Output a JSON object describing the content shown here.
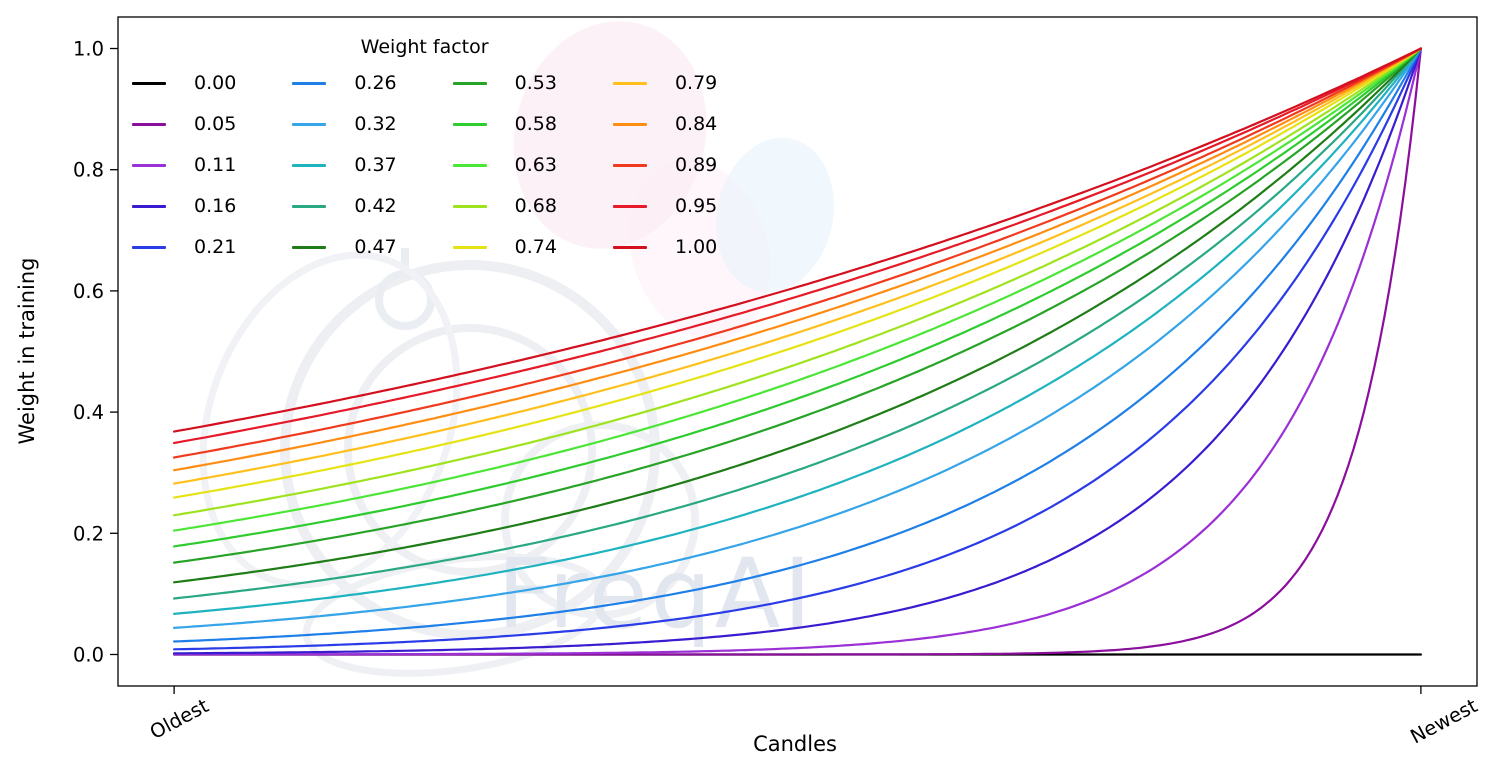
{
  "watermark": {
    "text": "FreqAI"
  },
  "chart_data": {
    "type": "line",
    "title": "",
    "xlabel": "Candles",
    "ylabel": "Weight in training",
    "x_ticks": [
      {
        "label": "Oldest",
        "value": 0
      },
      {
        "label": "Newest",
        "value": 1
      }
    ],
    "y_ticks": [
      {
        "label": "0.0",
        "value": 0.0
      },
      {
        "label": "0.2",
        "value": 0.2
      },
      {
        "label": "0.4",
        "value": 0.4
      },
      {
        "label": "0.6",
        "value": 0.6
      },
      {
        "label": "0.8",
        "value": 0.8
      },
      {
        "label": "1.0",
        "value": 1.0
      }
    ],
    "ylim": [
      0,
      1
    ],
    "x_range": [
      0,
      1
    ],
    "grid": false,
    "legend_title": "Weight factor",
    "legend_position": "upper-left",
    "legend_columns": 4,
    "curve_formula": "weight(x) = exp(-(1 - x) / weight_factor) for x in [0,1]; weight_factor 0.00 is flat at 0; all curves reach 1.0 at Newest",
    "series": [
      {
        "label": "0.00",
        "weight_factor": 0.0,
        "color": "#000000"
      },
      {
        "label": "0.05",
        "weight_factor": 0.05,
        "color": "#8b0f9c"
      },
      {
        "label": "0.11",
        "weight_factor": 0.11,
        "color": "#9a30d5"
      },
      {
        "label": "0.16",
        "weight_factor": 0.16,
        "color": "#3a1cd0"
      },
      {
        "label": "0.21",
        "weight_factor": 0.21,
        "color": "#2a3be8"
      },
      {
        "label": "0.26",
        "weight_factor": 0.26,
        "color": "#1f7fe8"
      },
      {
        "label": "0.32",
        "weight_factor": 0.32,
        "color": "#35a4e8"
      },
      {
        "label": "0.37",
        "weight_factor": 0.37,
        "color": "#1fb3c0"
      },
      {
        "label": "0.42",
        "weight_factor": 0.42,
        "color": "#2aa883"
      },
      {
        "label": "0.47",
        "weight_factor": 0.47,
        "color": "#1e7d16"
      },
      {
        "label": "0.53",
        "weight_factor": 0.53,
        "color": "#27a427"
      },
      {
        "label": "0.58",
        "weight_factor": 0.58,
        "color": "#2ecc2e"
      },
      {
        "label": "0.63",
        "weight_factor": 0.63,
        "color": "#4ce636"
      },
      {
        "label": "0.68",
        "weight_factor": 0.68,
        "color": "#9fe31f"
      },
      {
        "label": "0.74",
        "weight_factor": 0.74,
        "color": "#e6e314"
      },
      {
        "label": "0.79",
        "weight_factor": 0.79,
        "color": "#ffc01e"
      },
      {
        "label": "0.84",
        "weight_factor": 0.84,
        "color": "#ff8d12"
      },
      {
        "label": "0.89",
        "weight_factor": 0.89,
        "color": "#f03a1e"
      },
      {
        "label": "0.95",
        "weight_factor": 0.95,
        "color": "#e61a28"
      },
      {
        "label": "1.00",
        "weight_factor": 1.0,
        "color": "#d4101f"
      }
    ]
  }
}
